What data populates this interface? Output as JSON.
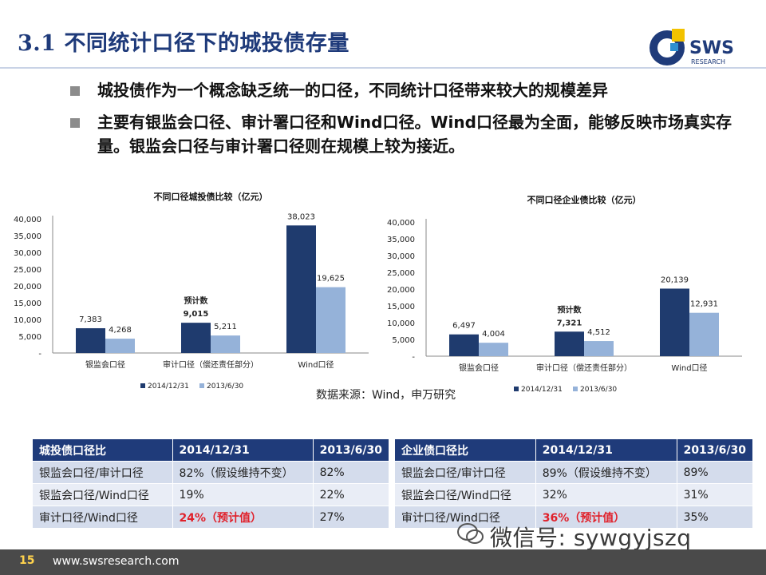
{
  "header": {
    "title": "3.1 不同统计口径下的城投债存量"
  },
  "logo": {
    "name": "SWS",
    "sub": "RESEARCH"
  },
  "bullets": [
    "城投债作为一个概念缺乏统一的口径，不同统计口径带来较大的规模差异",
    "主要有银监会口径、审计署口径和Wind口径。Wind口径最为全面，能够反映市场真实存量。银监会口径与审计署口径则在规模上较为接近。"
  ],
  "colors": {
    "series1": "#1f3b6e",
    "series2": "#95b2d9",
    "header": "#1f3b7a",
    "accent_red": "#e0202a"
  },
  "chart_data": [
    {
      "type": "bar",
      "title": "不同口径城投债比较（亿元）",
      "categories": [
        "银监会口径",
        "审计口径（偿还责任部分）",
        "Wind口径"
      ],
      "series": [
        {
          "name": "2014/12/31",
          "values": [
            7383,
            9015,
            38023
          ]
        },
        {
          "name": "2013/6/30",
          "values": [
            4268,
            5211,
            19625
          ]
        }
      ],
      "ylim": [
        0,
        40000
      ],
      "yticks": [
        "-",
        "5,000",
        "10,000",
        "15,000",
        "20,000",
        "25,000",
        "30,000",
        "35,000",
        "40,000"
      ],
      "annotation": {
        "category_index": 1,
        "text": "预计数"
      },
      "legend": "bottom"
    },
    {
      "type": "bar",
      "title": "不同口径企业债比较（亿元）",
      "categories": [
        "银监会口径",
        "审计口径（偿还责任部分）",
        "Wind口径"
      ],
      "series": [
        {
          "name": "2014/12/31",
          "values": [
            6497,
            7321,
            20139
          ]
        },
        {
          "name": "2013/6/30",
          "values": [
            4004,
            4512,
            12931
          ]
        }
      ],
      "ylim": [
        0,
        40000
      ],
      "yticks": [
        "-",
        "5,000",
        "10,000",
        "15,000",
        "20,000",
        "25,000",
        "30,000",
        "35,000",
        "40,000"
      ],
      "annotation": {
        "category_index": 1,
        "text": "预计数"
      },
      "legend": "bottom"
    }
  ],
  "source": "数据来源：Wind，申万研究",
  "tables": [
    {
      "headers": [
        "城投债口径比",
        "2014/12/31",
        "2013/6/30"
      ],
      "rows": [
        [
          "银监会口径/审计口径",
          "82%（假设维持不变）",
          "82%"
        ],
        [
          "银监会口径/Wind口径",
          "19%",
          "22%"
        ],
        [
          "审计口径/Wind口径",
          "24%（预计值）",
          "27%"
        ]
      ]
    },
    {
      "headers": [
        "企业债口径比",
        "2014/12/31",
        "2013/6/30"
      ],
      "rows": [
        [
          "银监会口径/审计口径",
          "89%（假设维持不变）",
          "89%"
        ],
        [
          "银监会口径/Wind口径",
          "32%",
          "31%"
        ],
        [
          "审计口径/Wind口径",
          "36%（预计值）",
          "35%"
        ]
      ]
    }
  ],
  "footer": {
    "page": "15",
    "url": "www.swsresearch.com"
  },
  "watermark": {
    "text": "微信号: sywgyjszq"
  }
}
